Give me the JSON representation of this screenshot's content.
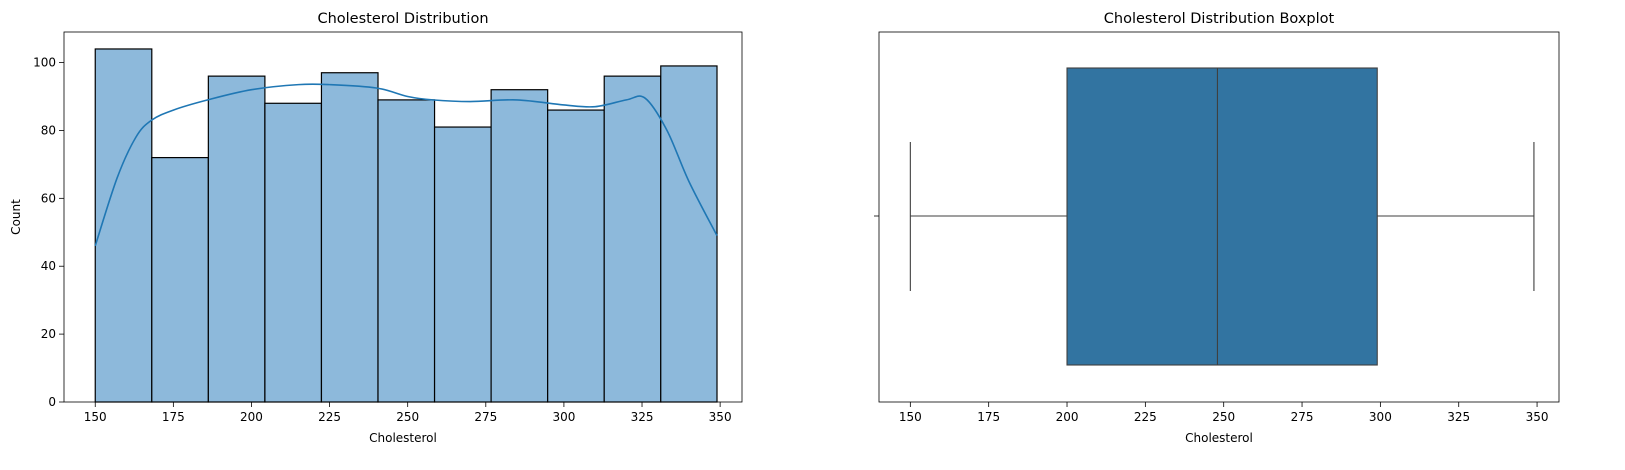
{
  "chart_data": [
    {
      "type": "bar",
      "title": "Cholesterol Distribution",
      "xlabel": "Cholesterol",
      "ylabel": "Count",
      "bin_edges": [
        150,
        168.1,
        186.2,
        204.3,
        222.4,
        240.5,
        258.6,
        276.7,
        294.8,
        312.9,
        331.0,
        349
      ],
      "values": [
        104,
        72,
        96,
        88,
        97,
        89,
        81,
        92,
        86,
        96,
        99
      ],
      "kde": {
        "x": [
          150,
          157,
          163,
          168,
          175,
          186,
          200,
          215,
          225,
          240,
          250,
          258,
          270,
          285,
          300,
          310,
          320,
          326,
          333,
          340,
          349
        ],
        "y": [
          46,
          66,
          78,
          83,
          86,
          89,
          92,
          93.5,
          93.5,
          92.5,
          90,
          89,
          88.5,
          89,
          87.5,
          87,
          89,
          89.5,
          80,
          65,
          49
        ]
      },
      "xlim": [
        140,
        357
      ],
      "ylim": [
        0,
        109
      ],
      "xticks": [
        "150",
        "175",
        "200",
        "225",
        "250",
        "275",
        "300",
        "325",
        "350"
      ],
      "yticks": [
        "0",
        "20",
        "40",
        "60",
        "80",
        "100"
      ],
      "colors": {
        "bar": "#8db9db",
        "edge": "#000000",
        "kde": "#1f77b4"
      },
      "grid": false
    },
    {
      "type": "box",
      "title": "Cholesterol Distribution Boxplot",
      "xlabel": "Cholesterol",
      "whisker_low": 150,
      "q1": 200,
      "median": 248,
      "q3": 299,
      "whisker_high": 349,
      "xlim": [
        140,
        357
      ],
      "xticks": [
        "150",
        "175",
        "200",
        "225",
        "250",
        "275",
        "300",
        "325",
        "350"
      ],
      "colors": {
        "box": "#3274a1",
        "line": "#3f3f3f"
      },
      "grid": false
    }
  ]
}
